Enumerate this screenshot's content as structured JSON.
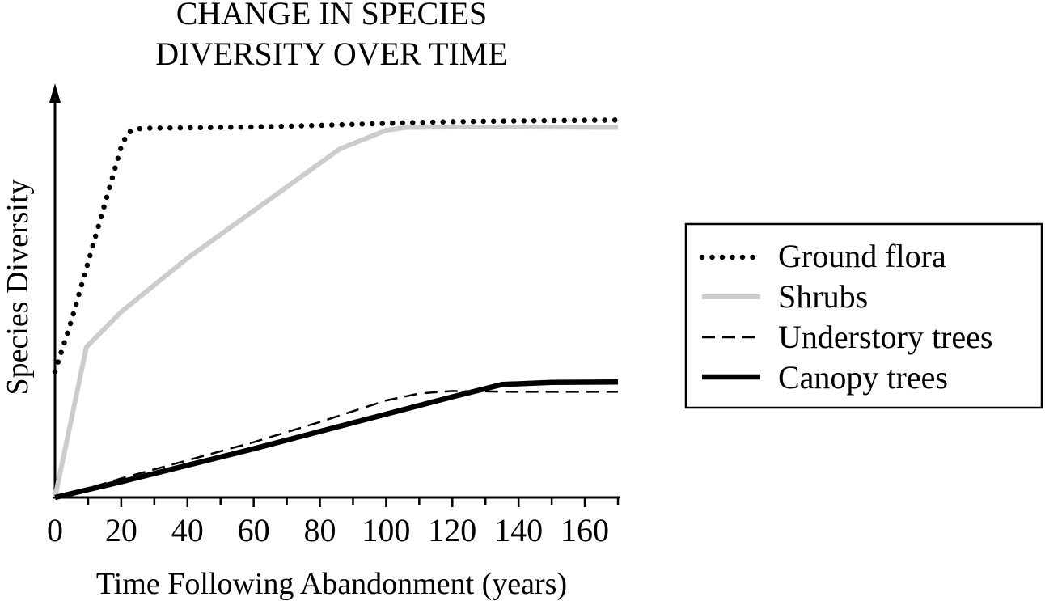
{
  "chart_data": {
    "type": "line",
    "title": [
      "CHANGE IN SPECIES",
      "DIVERSITY OVER TIME"
    ],
    "xlabel": "Time Following Abandonment (years)",
    "ylabel": "Species Diversity",
    "xlim": [
      0,
      170
    ],
    "ylim": [
      0,
      100
    ],
    "x_ticks": [
      0,
      20,
      40,
      60,
      80,
      100,
      120,
      140,
      160
    ],
    "x_tick_labels": [
      "0",
      "20",
      "40",
      "60",
      "80",
      "100",
      "120",
      "140",
      "160"
    ],
    "grid": false,
    "legend_position": "right",
    "series": [
      {
        "name": "Ground flora",
        "style": "dotted",
        "color": "#000000",
        "points": [
          [
            0,
            30.5
          ],
          [
            5,
            43
          ],
          [
            10,
            57
          ],
          [
            15,
            71
          ],
          [
            20,
            85
          ],
          [
            22,
            88.5
          ],
          [
            26,
            89.5
          ],
          [
            40,
            89.6
          ],
          [
            60,
            89.8
          ],
          [
            80,
            90.2
          ],
          [
            100,
            90.7
          ],
          [
            120,
            91.1
          ],
          [
            140,
            91.3
          ],
          [
            170,
            91.5
          ]
        ]
      },
      {
        "name": "Shrubs",
        "style": "solid-thick",
        "color": "#cccccc",
        "points": [
          [
            0,
            0
          ],
          [
            9.5,
            36.5
          ],
          [
            20,
            45
          ],
          [
            40,
            58
          ],
          [
            60,
            69.5
          ],
          [
            86,
            84.5
          ],
          [
            100,
            89
          ],
          [
            106,
            89.7
          ],
          [
            120,
            89.8
          ],
          [
            140,
            89.8
          ],
          [
            170,
            89.7
          ]
        ]
      },
      {
        "name": "Understory trees",
        "style": "dashed",
        "color": "#000000",
        "points": [
          [
            0,
            0
          ],
          [
            10,
            2.2
          ],
          [
            20,
            4.6
          ],
          [
            40,
            9
          ],
          [
            60,
            13.4
          ],
          [
            80,
            18.3
          ],
          [
            100,
            23.5
          ],
          [
            110,
            25.2
          ],
          [
            120,
            25.8
          ],
          [
            140,
            25.6
          ],
          [
            170,
            25.6
          ]
        ]
      },
      {
        "name": "Canopy trees",
        "style": "solid-bold",
        "color": "#000000",
        "points": [
          [
            0,
            0
          ],
          [
            20,
            3.8
          ],
          [
            40,
            7.8
          ],
          [
            60,
            11.8
          ],
          [
            80,
            16
          ],
          [
            100,
            20.2
          ],
          [
            120,
            24.4
          ],
          [
            135,
            27.4
          ],
          [
            150,
            27.9
          ],
          [
            170,
            28
          ]
        ]
      }
    ]
  }
}
